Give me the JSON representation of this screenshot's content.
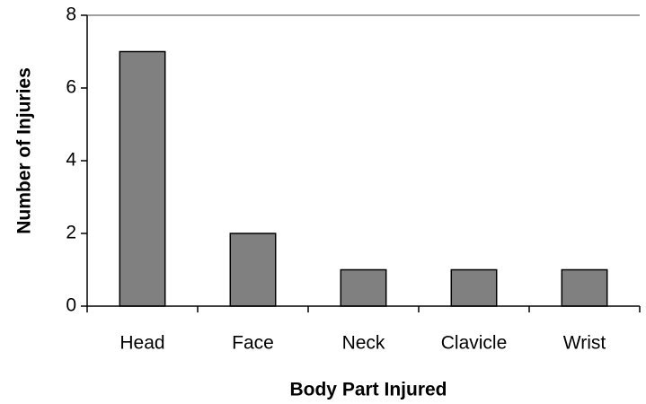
{
  "chart_data": {
    "type": "bar",
    "x_label": "Body Part Injured",
    "y_label": "Number of Injuries",
    "categories": [
      "Head",
      "Face",
      "Neck",
      "Clavicle",
      "Wrist"
    ],
    "values": [
      7,
      2,
      1,
      1,
      1
    ],
    "color": "#808080",
    "ylim": [
      0,
      8
    ],
    "yticks": [
      0,
      2,
      4,
      6,
      8
    ],
    "grid": false
  }
}
